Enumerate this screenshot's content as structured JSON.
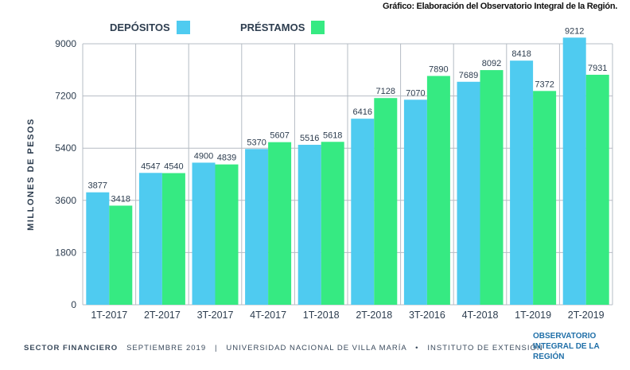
{
  "header": {
    "credit": "Gráfico: Elaboración del Observatorio Integral de la Región."
  },
  "legend": {
    "series_a": "DEPÓSITOS",
    "series_b": "PRÉSTAMOS"
  },
  "colors": {
    "depositos": "#4fcbf0",
    "prestamos": "#36ea82",
    "grid": "#b5bcc4",
    "text": "#2d3d4f",
    "brand": "#1f6fa8"
  },
  "chart_data": {
    "type": "bar",
    "title": "",
    "xlabel": "",
    "ylabel": "MILLONES DE PESOS",
    "ylim": [
      0,
      9000
    ],
    "yticks": [
      0,
      1800,
      3600,
      5400,
      7200,
      9000
    ],
    "categories": [
      "1T-2017",
      "2T-2017",
      "3T-2017",
      "4T-2017",
      "1T-2018",
      "2T-2018",
      "3T-2016",
      "4T-2018",
      "1T-2019",
      "2T-2019"
    ],
    "series": [
      {
        "name": "DEPÓSITOS",
        "values": [
          3877,
          4547,
          4900,
          5370,
          5516,
          6416,
          7070,
          7689,
          8418,
          9212
        ]
      },
      {
        "name": "PRÉSTAMOS",
        "values": [
          3418,
          4540,
          4839,
          5607,
          5618,
          7128,
          7890,
          8092,
          7372,
          7931
        ]
      }
    ],
    "grid": true,
    "legend_position": "top-left"
  },
  "footer": {
    "sector": "SECTOR FINANCIERO",
    "date": "SEPTIEMBRE 2019",
    "sep1": "|",
    "university": "UNIVERSIDAD NACIONAL DE VILLA MARÍA",
    "sep2": "•",
    "institute": "INSTITUTO DE EXTENSIÓN",
    "brand": "OBSERVATORIO INTEGRAL DE LA REGIÓN"
  }
}
